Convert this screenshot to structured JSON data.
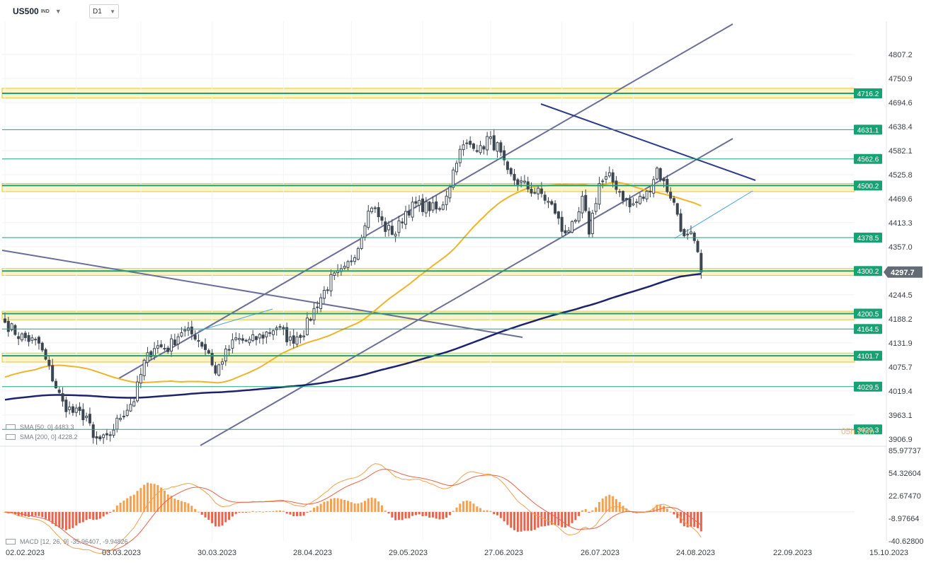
{
  "header": {
    "symbol": "US500",
    "market": "IND",
    "timeframe": "D1"
  },
  "colors": {
    "bull_candle": "#ffffff",
    "bear_candle": "#3c4651",
    "level_line": "#19a37d",
    "level_label_bg": "#17a274",
    "zone_fill": "#fcf3c4",
    "zone_border": "#e3c43e",
    "sma50": "#f0b429",
    "sma200": "#1d236d",
    "trend_line": "#6b6e96",
    "blue_trend": "#2d3c8e",
    "macd_line": "#f5a04c",
    "signal_line": "#e8634a",
    "hist_pos": "#f5a04c",
    "hist_neg": "#e8634a",
    "last_price_bg": "#636c74"
  },
  "indicators": {
    "sma50_label": "SMA [50, 0] 4483.3",
    "sma200_label": "SMA [200, 0] 4228.2",
    "macd_label": "MACD [12, 26, 9] -35.96407, -9.94826",
    "countdown": "05h 26m"
  },
  "chart_data": {
    "type": "candlestick",
    "timeframe": "D1",
    "x_tick_labels": [
      "02.02.2023",
      "03.03.2023",
      "30.03.2023",
      "28.04.2023",
      "29.05.2023",
      "27.06.2023",
      "26.07.2023",
      "24.08.2023",
      "22.09.2023",
      "15.10.2023"
    ],
    "price_axis_labels": [
      "4807.2",
      "4750.9",
      "4694.6",
      "4638.4",
      "4582.1",
      "4525.8",
      "4469.6",
      "4413.3",
      "4357.0",
      "4244.5",
      "4188.2",
      "4131.9",
      "4075.7",
      "4019.4",
      "3963.1",
      "3906.9"
    ],
    "y_range": [
      3895,
      4885
    ],
    "last_price": "4297.7",
    "horizontal_levels": [
      {
        "label": "4716.2",
        "value": 4716.2,
        "zone": [
          4705,
          4728
        ]
      },
      {
        "label": "4631.1",
        "value": 4631.1
      },
      {
        "label": "4562.6",
        "value": 4562.6
      },
      {
        "label": "4500.2",
        "value": 4500.2,
        "zone": [
          4486,
          4505
        ]
      },
      {
        "label": "4378.5",
        "value": 4378.5
      },
      {
        "label": "4300.2",
        "value": 4300.2,
        "zone": [
          4290,
          4306
        ]
      },
      {
        "label": "4200.5",
        "value": 4200.5,
        "zone": [
          4186,
          4206
        ]
      },
      {
        "label": "4164.5",
        "value": 4164.5
      },
      {
        "label": "4101.7",
        "value": 4101.7,
        "zone": [
          4087,
          4108
        ]
      },
      {
        "label": "4029.5",
        "value": 4029.5
      },
      {
        "label": "3929.3",
        "value": 3929.3
      }
    ],
    "macd_axis_labels": [
      "85.97737",
      "54.32604",
      "22.67470",
      "-8.97664",
      "-40.62800"
    ],
    "macd_range": [
      -40.628,
      85.97737
    ],
    "anchor_closes": [
      [
        0,
        4180
      ],
      [
        4,
        4150
      ],
      [
        10,
        4130
      ],
      [
        17,
        3990
      ],
      [
        20,
        3970
      ],
      [
        24,
        3960
      ],
      [
        26,
        3905
      ],
      [
        30,
        3905
      ],
      [
        34,
        3960
      ],
      [
        38,
        4000
      ],
      [
        41,
        4085
      ],
      [
        44,
        4125
      ],
      [
        48,
        4120
      ],
      [
        52,
        4160
      ],
      [
        56,
        4150
      ],
      [
        60,
        4110
      ],
      [
        62,
        4060
      ],
      [
        64,
        4095
      ],
      [
        68,
        4140
      ],
      [
        72,
        4135
      ],
      [
        76,
        4150
      ],
      [
        80,
        4170
      ],
      [
        84,
        4137
      ],
      [
        88,
        4160
      ],
      [
        92,
        4225
      ],
      [
        96,
        4280
      ],
      [
        100,
        4300
      ],
      [
        104,
        4360
      ],
      [
        106,
        4420
      ],
      [
        108,
        4455
      ],
      [
        112,
        4400
      ],
      [
        115,
        4390
      ],
      [
        118,
        4440
      ],
      [
        121,
        4455
      ],
      [
        125,
        4450
      ],
      [
        128,
        4440
      ],
      [
        131,
        4505
      ],
      [
        133,
        4565
      ],
      [
        135,
        4590
      ],
      [
        138,
        4600
      ],
      [
        140,
        4582
      ],
      [
        142,
        4610
      ],
      [
        145,
        4590
      ],
      [
        148,
        4525
      ],
      [
        152,
        4505
      ],
      [
        155,
        4490
      ],
      [
        158,
        4480
      ],
      [
        162,
        4440
      ],
      [
        164,
        4395
      ],
      [
        168,
        4405
      ],
      [
        170,
        4465
      ],
      [
        172,
        4395
      ],
      [
        175,
        4505
      ],
      [
        178,
        4518
      ],
      [
        180,
        4500
      ],
      [
        182,
        4475
      ],
      [
        184,
        4450
      ],
      [
        186,
        4462
      ],
      [
        189,
        4480
      ],
      [
        192,
        4540
      ],
      [
        194,
        4505
      ],
      [
        196,
        4478
      ],
      [
        198,
        4435
      ],
      [
        200,
        4375
      ],
      [
        202,
        4380
      ],
      [
        204,
        4340
      ],
      [
        205,
        4297.7
      ]
    ]
  }
}
